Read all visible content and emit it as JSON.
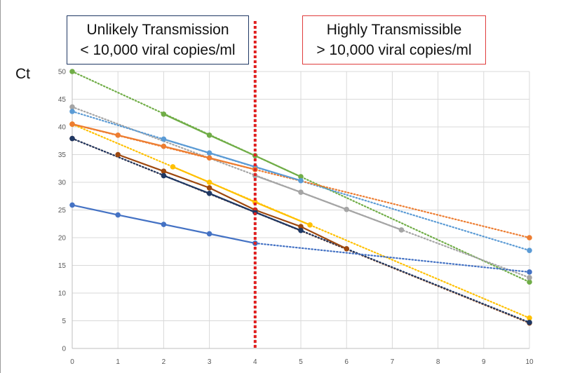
{
  "callouts": {
    "unlikely": {
      "line1": "Unlikely Transmission",
      "line2": "< 10,000 viral copies/ml"
    },
    "high": {
      "line1": "Highly Transmissible",
      "line2": "> 10,000 viral copies/ml"
    }
  },
  "colors": {
    "threshold_line": "#e02020",
    "grid": "#d9d9d9",
    "axis": "#bfbfbf",
    "tick_text": "#595959"
  },
  "chart_data": {
    "type": "line",
    "title": "",
    "xlabel": "",
    "ylabel": "Ct",
    "xlim": [
      0,
      10
    ],
    "ylim": [
      0,
      50
    ],
    "x_ticks": [
      0,
      1,
      2,
      3,
      4,
      5,
      6,
      7,
      8,
      9,
      10
    ],
    "y_ticks": [
      0,
      5,
      10,
      15,
      20,
      25,
      30,
      35,
      40,
      45,
      50
    ],
    "grid": true,
    "threshold_x": 4,
    "series": [
      {
        "color": "#70ad47",
        "points": [
          [
            2,
            42.3
          ],
          [
            3,
            38.5
          ],
          [
            4,
            34.8
          ],
          [
            5,
            31
          ]
        ],
        "trend": [
          [
            0,
            50
          ],
          [
            10,
            12
          ]
        ]
      },
      {
        "color": "#a5a5a5",
        "points": [
          [
            4,
            31.2
          ],
          [
            5,
            28.2
          ],
          [
            6,
            25.1
          ],
          [
            7.2,
            21.4
          ]
        ],
        "trend": [
          [
            0,
            43.6
          ],
          [
            10,
            12.8
          ]
        ]
      },
      {
        "color": "#5b9bd5",
        "points": [
          [
            2,
            37.8
          ],
          [
            3,
            35.3
          ],
          [
            4,
            32.8
          ],
          [
            5,
            30.3
          ]
        ],
        "trend": [
          [
            0,
            42.8
          ],
          [
            10,
            17.7
          ]
        ]
      },
      {
        "color": "#ed7d31",
        "points": [
          [
            0,
            40.5
          ],
          [
            1,
            38.5
          ],
          [
            2,
            36.5
          ],
          [
            3,
            34.4
          ],
          [
            4,
            32.3
          ]
        ],
        "trend": [
          [
            0,
            40.5
          ],
          [
            10,
            20
          ]
        ]
      },
      {
        "color": "#ffc000",
        "points": [
          [
            2.2,
            32.8
          ],
          [
            3,
            30
          ],
          [
            4,
            26.4
          ],
          [
            5.2,
            22.3
          ]
        ],
        "trend": [
          [
            0,
            40.5
          ],
          [
            10,
            5.5
          ]
        ]
      },
      {
        "color": "#9e480e",
        "points": [
          [
            1,
            35
          ],
          [
            2,
            32
          ],
          [
            3,
            29
          ],
          [
            4,
            25
          ],
          [
            5,
            22
          ],
          [
            6,
            18
          ]
        ],
        "trend": [
          [
            0,
            37.9
          ],
          [
            10,
            4.6
          ]
        ]
      },
      {
        "color": "#1f3864",
        "points": [
          [
            2,
            31.2
          ],
          [
            3,
            28
          ],
          [
            4,
            24.6
          ],
          [
            5,
            21.3
          ]
        ],
        "trend": [
          [
            0,
            37.9
          ],
          [
            10,
            4.7
          ]
        ]
      },
      {
        "color": "#4472c4",
        "points": [
          [
            0,
            25.9
          ],
          [
            1,
            24.1
          ],
          [
            2,
            22.4
          ],
          [
            3,
            20.7
          ],
          [
            4,
            19
          ]
        ],
        "trend": [
          [
            4,
            19
          ],
          [
            10,
            13.8
          ]
        ]
      }
    ]
  }
}
